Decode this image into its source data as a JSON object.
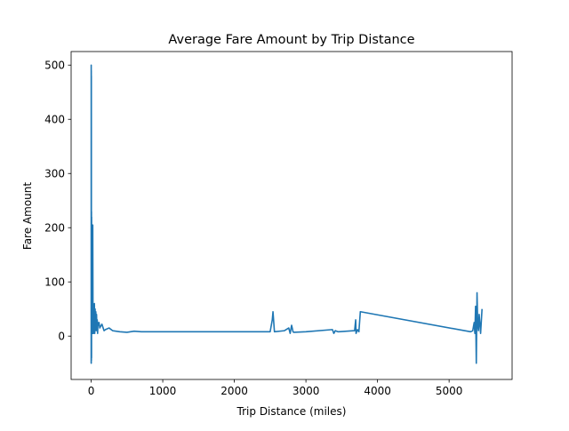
{
  "chart_data": {
    "type": "line",
    "title": "Average Fare Amount by Trip Distance",
    "xlabel": "Trip Distance (miles)",
    "ylabel": "Fare Amount",
    "xlim": [
      -280,
      5880
    ],
    "ylim": [
      -80,
      525
    ],
    "xticks": [
      0,
      1000,
      2000,
      3000,
      4000,
      5000
    ],
    "yticks": [
      0,
      100,
      200,
      300,
      400,
      500
    ],
    "grid": false,
    "legend": "none",
    "colors": {
      "line": "#1f77b4",
      "axes": "#000000",
      "background": "#ffffff"
    },
    "series": [
      {
        "x": [
          0,
          0.5,
          1,
          1.5,
          2,
          2.5,
          3,
          4,
          5,
          6,
          8,
          10,
          12,
          15,
          18,
          20,
          22,
          25,
          28,
          30,
          33,
          36,
          40,
          45,
          50,
          55,
          60,
          65,
          70,
          75,
          80,
          85,
          90,
          95,
          100,
          110,
          120,
          150,
          180,
          200,
          250,
          300,
          400,
          500,
          600,
          700,
          1000,
          1500,
          2000,
          2500,
          2530,
          2540,
          2560,
          2700,
          2760,
          2780,
          2800,
          2820,
          2830,
          3000,
          3370,
          3390,
          3410,
          3450,
          3680,
          3695,
          3700,
          3720,
          3740,
          3760,
          5300,
          5330,
          5350,
          5360,
          5370,
          5380,
          5390,
          5400,
          5410,
          5420,
          5440,
          5460
        ],
        "values": [
          -50,
          500,
          -50,
          490,
          10,
          480,
          -45,
          230,
          -40,
          220,
          20,
          200,
          10,
          150,
          190,
          5,
          205,
          60,
          15,
          50,
          5,
          40,
          10,
          60,
          5,
          50,
          20,
          45,
          10,
          40,
          15,
          30,
          5,
          25,
          20,
          25,
          15,
          22,
          10,
          12,
          15,
          10,
          8,
          7,
          9,
          8,
          8,
          8,
          8,
          8,
          30,
          45,
          8,
          10,
          15,
          5,
          20,
          8,
          7,
          8,
          12,
          5,
          10,
          8,
          10,
          30,
          5,
          12,
          8,
          45,
          8,
          10,
          25,
          5,
          55,
          -50,
          80,
          20,
          10,
          40,
          5,
          50
        ]
      }
    ]
  }
}
